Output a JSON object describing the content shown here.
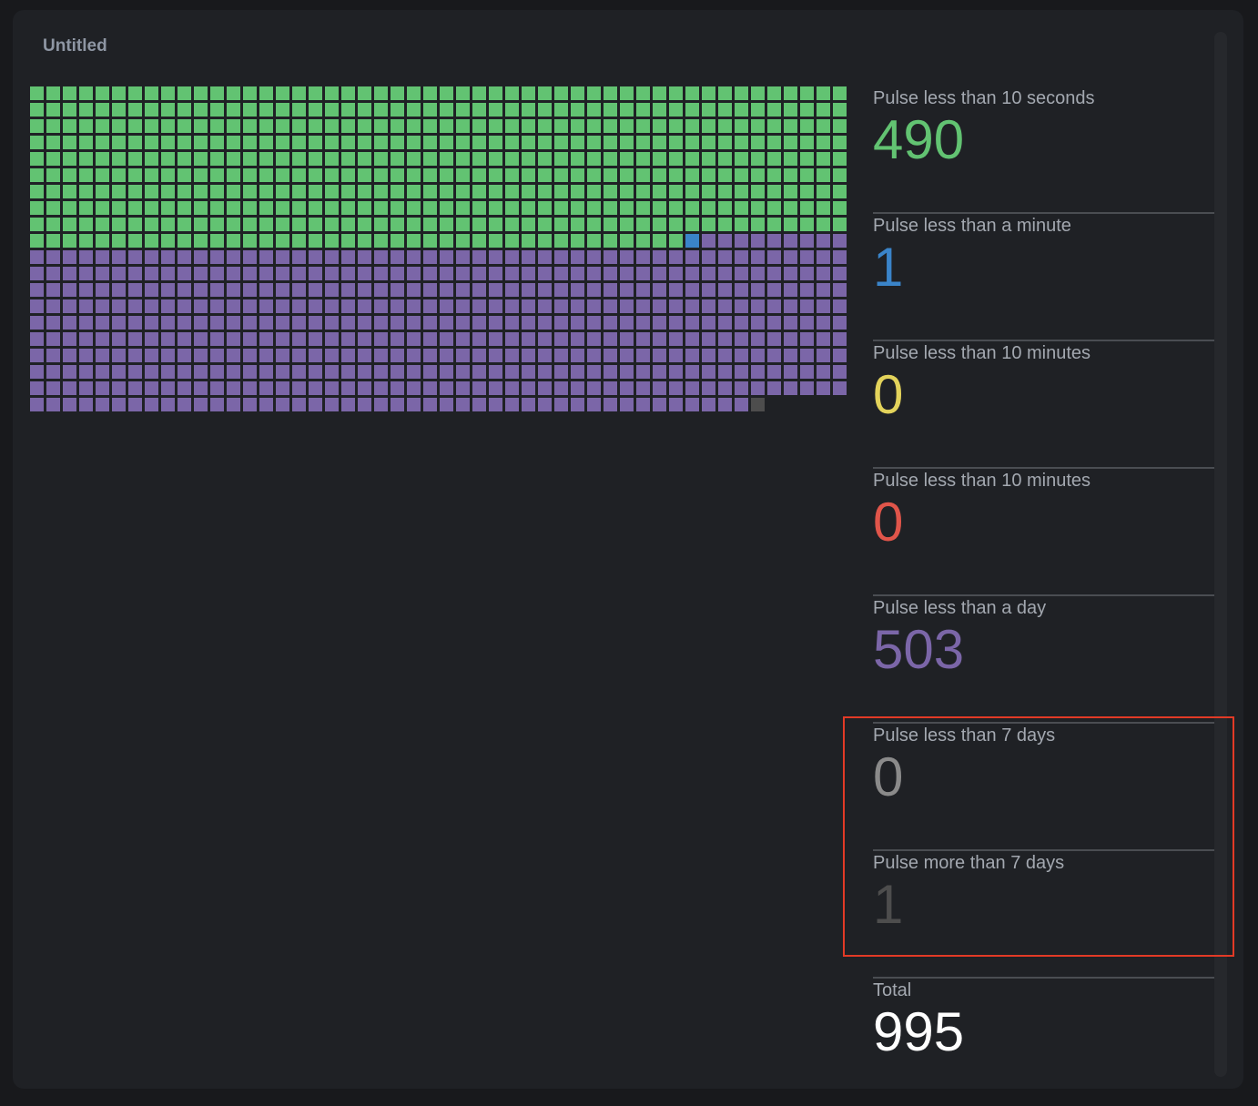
{
  "panel": {
    "title": "Untitled"
  },
  "stats": [
    {
      "label": "Pulse less than 10 seconds",
      "value": "490",
      "count": 490,
      "color": "#62c372"
    },
    {
      "label": "Pulse less than a minute",
      "value": "1",
      "count": 1,
      "color": "#3a84c9"
    },
    {
      "label": "Pulse less than 10 minutes",
      "value": "0",
      "count": 0,
      "color": "#e3d35b"
    },
    {
      "label": "Pulse less than 10 minutes",
      "value": "0",
      "count": 0,
      "color": "#e0554a"
    },
    {
      "label": "Pulse less than a day",
      "value": "503",
      "count": 503,
      "color": "#7b66a8"
    },
    {
      "label": "Pulse less than 7 days",
      "value": "0",
      "count": 0,
      "color": "#8a8a8a"
    },
    {
      "label": "Pulse more than 7 days",
      "value": "1",
      "count": 1,
      "color": "#4d4d4d"
    },
    {
      "label": "Total",
      "value": "995",
      "color": "#ffffff"
    }
  ]
}
